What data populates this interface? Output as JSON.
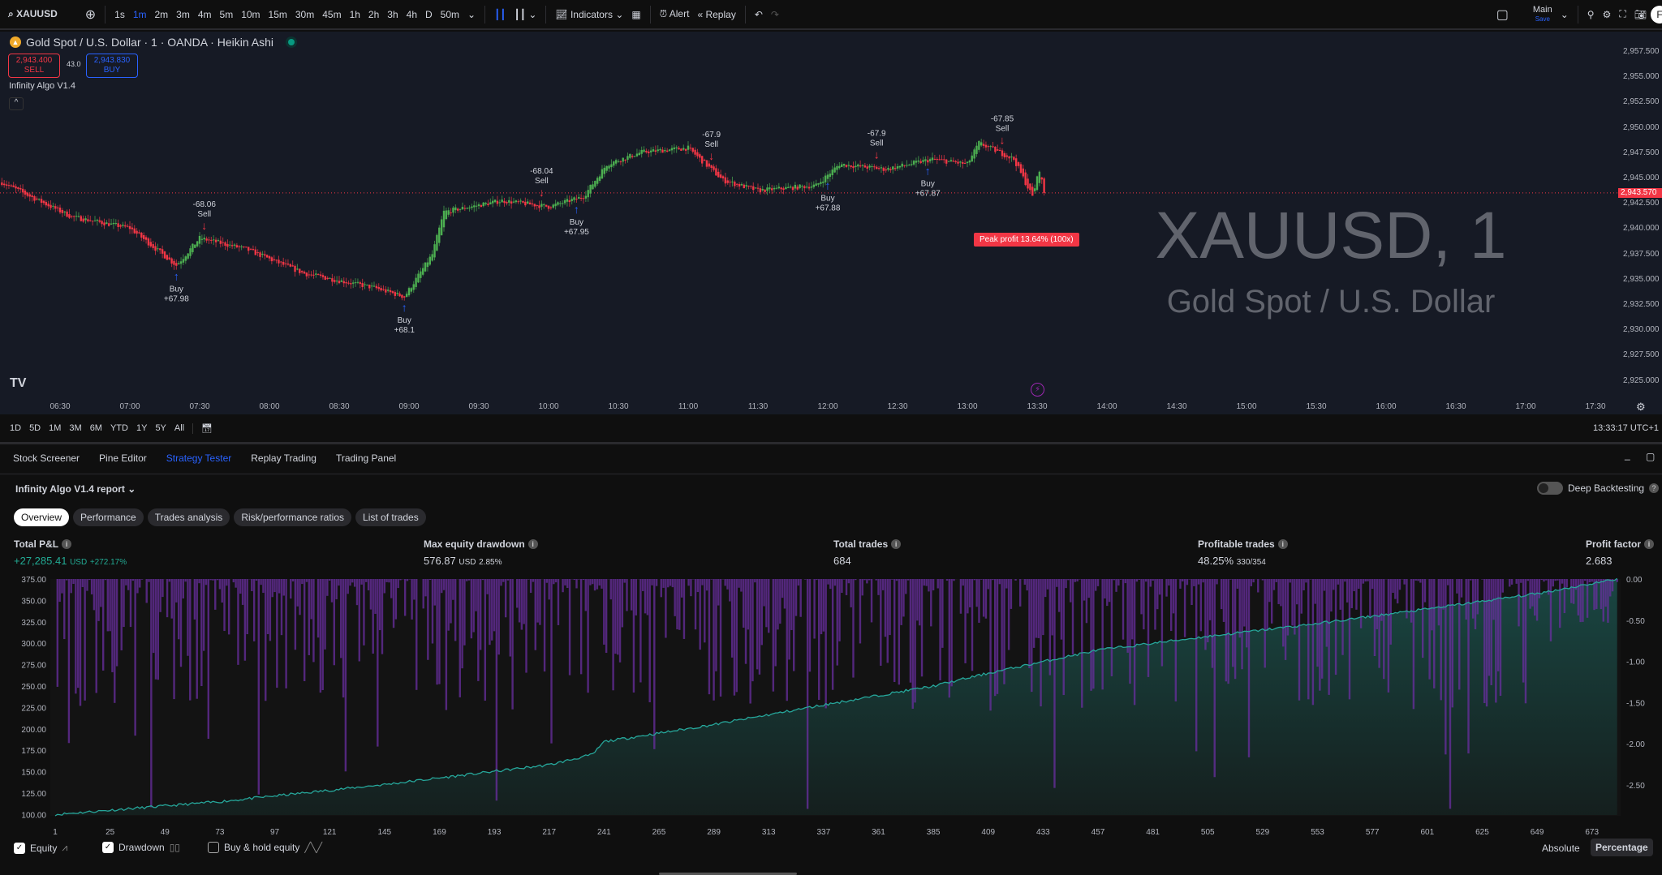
{
  "toolbar": {
    "symbol": "XAUUSD",
    "timeframes": [
      "1s",
      "1m",
      "2m",
      "3m",
      "4m",
      "5m",
      "10m",
      "15m",
      "30m",
      "45m",
      "1h",
      "2h",
      "3h",
      "4h",
      "D",
      "50m"
    ],
    "active_timeframe": "1m",
    "indicators": "Indicators",
    "alert": "Alert",
    "replay": "Replay",
    "layout_name": "Main",
    "layout_save": "Save",
    "avatar": "F"
  },
  "chart": {
    "title": "Gold Spot / U.S. Dollar · 1 · OANDA · Heikin Ashi",
    "sell_price": "2,943.400",
    "sell_label": "SELL",
    "buy_price": "2,943.830",
    "buy_label": "BUY",
    "spread": "43.0",
    "indicator": "Infinity Algo V1.4",
    "watermark_symbol": "XAUUSD, 1",
    "watermark_name": "Gold Spot / U.S. Dollar",
    "peak_profit": "Peak profit 13.64% (100x)",
    "current_price": "2,943.570",
    "price_ticks": [
      "2,957.500",
      "2,955.000",
      "2,952.500",
      "2,950.000",
      "2,947.500",
      "2,945.000",
      "2,942.500",
      "2,940.000",
      "2,937.500",
      "2,935.000",
      "2,932.500",
      "2,930.000",
      "2,927.500",
      "2,925.000"
    ],
    "time_ticks": [
      "06:30",
      "07:00",
      "07:30",
      "08:00",
      "08:30",
      "09:00",
      "09:30",
      "10:00",
      "10:30",
      "11:00",
      "11:30",
      "12:00",
      "12:30",
      "13:00",
      "13:30",
      "14:00",
      "14:30",
      "15:00",
      "15:30",
      "16:00",
      "16:30",
      "17:00",
      "17:30"
    ],
    "colors": {
      "up": "#4caf50",
      "down": "#f23645",
      "buy": "#2962ff",
      "sell": "#f23645"
    }
  },
  "chart_data": [
    {
      "type": "candlestick",
      "style": "Heikin Ashi",
      "ylim": [
        2925,
        2957.5
      ],
      "price_path": [
        [
          "06:05",
          2944.6
        ],
        [
          "06:35",
          2941.2
        ],
        [
          "07:00",
          2940.1
        ],
        [
          "07:20",
          2936.4
        ],
        [
          "07:30",
          2939.1
        ],
        [
          "07:50",
          2938.0
        ],
        [
          "08:15",
          2935.6
        ],
        [
          "08:45",
          2934.2
        ],
        [
          "08:58",
          2933.3
        ],
        [
          "09:10",
          2937.5
        ],
        [
          "09:15",
          2941.7
        ],
        [
          "09:40",
          2942.8
        ],
        [
          "10:00",
          2942.2
        ],
        [
          "10:15",
          2943.2
        ],
        [
          "10:25",
          2946.4
        ],
        [
          "10:40",
          2947.6
        ],
        [
          "11:00",
          2948.0
        ],
        [
          "11:15",
          2944.8
        ],
        [
          "11:30",
          2943.8
        ],
        [
          "11:55",
          2944.3
        ],
        [
          "12:05",
          2946.4
        ],
        [
          "12:25",
          2945.9
        ],
        [
          "12:45",
          2946.9
        ],
        [
          "13:00",
          2946.4
        ],
        [
          "13:05",
          2948.5
        ],
        [
          "13:20",
          2946.9
        ],
        [
          "13:28",
          2943.2
        ],
        [
          "13:31",
          2945.9
        ],
        [
          "13:33",
          2943.57
        ]
      ],
      "signals": [
        {
          "time": "07:20",
          "side": "Buy",
          "label": "Buy",
          "value": "+67.98"
        },
        {
          "time": "07:32",
          "side": "Sell",
          "label": "Sell",
          "value": "-68.06"
        },
        {
          "time": "08:58",
          "side": "Buy",
          "label": "Buy",
          "value": "+68.1"
        },
        {
          "time": "09:57",
          "side": "Sell",
          "label": "Sell",
          "value": "-68.04"
        },
        {
          "time": "10:12",
          "side": "Buy",
          "label": "Buy",
          "value": "+67.95"
        },
        {
          "time": "11:10",
          "side": "Sell",
          "label": "Sell",
          "value": "-67.9"
        },
        {
          "time": "12:00",
          "side": "Buy",
          "label": "Buy",
          "value": "+67.88"
        },
        {
          "time": "12:21",
          "side": "Sell",
          "label": "Sell",
          "value": "-67.9"
        },
        {
          "time": "12:43",
          "side": "Buy",
          "label": "Buy",
          "value": "+67.87"
        },
        {
          "time": "13:15",
          "side": "Sell",
          "label": "Sell",
          "value": "-67.85"
        }
      ]
    },
    {
      "type": "area+bar",
      "series": [
        {
          "name": "Equity",
          "points": [
            [
              1,
              100
            ],
            [
              73,
              115
            ],
            [
              145,
              135
            ],
            [
              217,
              158
            ],
            [
              236,
              170
            ],
            [
              241,
              185
            ],
            [
              289,
              205
            ],
            [
              337,
              228
            ],
            [
              385,
              250
            ],
            [
              409,
              265
            ],
            [
              457,
              292
            ],
            [
              505,
              308
            ],
            [
              553,
              323
            ],
            [
              601,
              340
            ],
            [
              649,
              358
            ],
            [
              684,
              375
            ]
          ]
        },
        {
          "name": "Drawdown",
          "max_percent": -2.85
        }
      ],
      "x_ticks": [
        1,
        25,
        49,
        73,
        97,
        121,
        145,
        169,
        193,
        217,
        241,
        265,
        289,
        313,
        337,
        361,
        385,
        409,
        433,
        457,
        481,
        505,
        529,
        553,
        577,
        601,
        625,
        649,
        673
      ],
      "y_left_ticks": [
        "375.00",
        "350.00",
        "325.00",
        "300.00",
        "275.00",
        "250.00",
        "225.00",
        "200.00",
        "175.00",
        "150.00",
        "125.00",
        "100.00"
      ],
      "y_right_ticks": [
        "0.00",
        "-0.50",
        "-1.00",
        "-1.50",
        "-2.00",
        "-2.50"
      ],
      "ylim_left": [
        100,
        375
      ],
      "ylim_right": [
        -2.85,
        0
      ]
    }
  ],
  "range_bar": {
    "ranges": [
      "1D",
      "5D",
      "1M",
      "3M",
      "6M",
      "YTD",
      "1Y",
      "5Y",
      "All"
    ],
    "clock": "13:33:17 UTC+1"
  },
  "panel": {
    "tabs": [
      "Stock Screener",
      "Pine Editor",
      "Strategy Tester",
      "Replay Trading",
      "Trading Panel"
    ],
    "active_tab": "Strategy Tester",
    "report": "Infinity Algo V1.4 report",
    "deep_backtesting": "Deep Backtesting",
    "deep_backtesting_on": false,
    "subtabs": [
      "Overview",
      "Performance",
      "Trades analysis",
      "Risk/performance ratios",
      "List of trades"
    ],
    "stats": {
      "pnl_label": "Total P&L",
      "pnl_value": "+27,285.41",
      "pnl_unit": "USD",
      "pnl_pct": "+272.17%",
      "dd_label": "Max equity drawdown",
      "dd_value": "576.87",
      "dd_unit": "USD",
      "dd_pct": "2.85%",
      "trades_label": "Total trades",
      "trades_value": "684",
      "profitable_label": "Profitable trades",
      "profitable_value": "48.25%",
      "profitable_ratio": "330/354",
      "pf_label": "Profit factor",
      "pf_value": "2.683"
    },
    "legend": {
      "equity": "Equity",
      "equity_on": true,
      "drawdown": "Drawdown",
      "drawdown_on": true,
      "buyhold": "Buy & hold equity",
      "buyhold_on": false
    },
    "mode": {
      "absolute": "Absolute",
      "percentage": "Percentage",
      "active": "Percentage"
    },
    "colors": {
      "equity": "#26a69a",
      "drawdown": "#6a2fa0",
      "positive": "#22ab94"
    }
  }
}
